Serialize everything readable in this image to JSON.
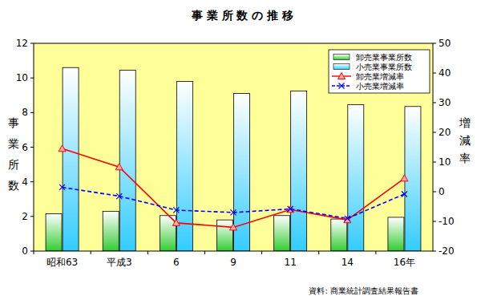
{
  "chart_data": {
    "type": "bar",
    "title": "事 業 所 数 の 推 移",
    "y_label": "事業所数",
    "y2_label": "増減率",
    "annotations": [
      "資料: 商業統計調査結果報告書"
    ],
    "categories": [
      "昭和63",
      "平成3",
      "6",
      "9",
      "11",
      "14",
      "16年"
    ],
    "ylim": [
      0,
      12
    ],
    "yticks": [
      0,
      2,
      4,
      6,
      8,
      10,
      12
    ],
    "y2lim": [
      -20,
      50
    ],
    "y2ticks": [
      -20,
      -10,
      0,
      10,
      20,
      30,
      40,
      50
    ],
    "grid": false,
    "legend": "upper right",
    "series": [
      {
        "name": "卸売業事業所数",
        "type": "bar",
        "color": "#33cc33",
        "values": [
          2.15,
          2.3,
          2.05,
          1.8,
          2.05,
          1.85,
          1.95
        ]
      },
      {
        "name": "小売業事業所数",
        "type": "bar",
        "color": "#33ccff",
        "values": [
          10.6,
          10.45,
          9.8,
          9.1,
          9.25,
          8.45,
          8.35
        ]
      },
      {
        "name": "卸売業増減率",
        "type": "line",
        "axis": "y2",
        "color": "#ff0000",
        "marker": "triangle",
        "line_style": "solid",
        "values": [
          14.5,
          8.3,
          -10.5,
          -12,
          -6,
          -9.5,
          4.5
        ]
      },
      {
        "name": "小売業増減率",
        "type": "line",
        "axis": "y2",
        "color": "#0000ff",
        "marker": "x",
        "line_style": "dashed",
        "values": [
          1.5,
          -1.5,
          -6.2,
          -7,
          -5.8,
          -9,
          -0.8
        ]
      }
    ]
  }
}
